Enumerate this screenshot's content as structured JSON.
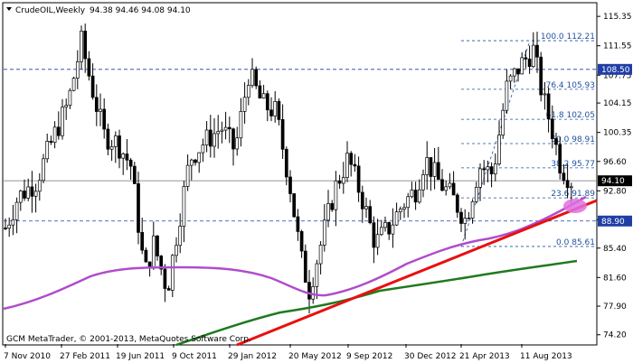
{
  "header": {
    "symbol": "CrudeOIL,Weekly",
    "ohlc": "94.38 94.46 94.08 94.10"
  },
  "footer": {
    "copyright": "GCM MetaTrader, © 2001-2013, MetaQuotes Software Corp."
  },
  "chart_data": {
    "type": "candlestick",
    "ylim": [
      73.0,
      117.0
    ],
    "y_ticks": [
      {
        "value": 115.35,
        "label": "115.35"
      },
      {
        "value": 111.55,
        "label": "111.55"
      },
      {
        "value": 107.75,
        "label": "107.75"
      },
      {
        "value": 104.15,
        "label": "104.15"
      },
      {
        "value": 100.35,
        "label": "100.35"
      },
      {
        "value": 96.6,
        "label": "96.60"
      },
      {
        "value": 92.8,
        "label": "92.80"
      },
      {
        "value": 89.05,
        "label": "89.05"
      },
      {
        "value": 85.4,
        "label": "85.40"
      },
      {
        "value": 81.6,
        "label": "81.60"
      },
      {
        "value": 77.9,
        "label": "77.90"
      },
      {
        "value": 74.2,
        "label": "74.20"
      }
    ],
    "x_labels": [
      "7 Nov 2010",
      "27 Feb 2011",
      "19 Jun 2011",
      "9 Oct 2011",
      "29 Jan 2012",
      "20 May 2012",
      "9 Sep 2012",
      "30 Dec 2012",
      "21 Apr 2013",
      "11 Aug 2013"
    ],
    "price_markers": [
      {
        "value": 108.5,
        "label": "108.50",
        "color": "#1f3fa6"
      },
      {
        "value": 94.1,
        "label": "94.10",
        "color": "#000000"
      },
      {
        "value": 88.9,
        "label": "88.90",
        "color": "#1f3fa6"
      }
    ],
    "fibonacci": [
      {
        "level": "100.0",
        "price": 112.21,
        "label": "100.0 112.21"
      },
      {
        "level": "76.4",
        "price": 105.93,
        "label": "76.4 105.93"
      },
      {
        "level": "61.8",
        "price": 102.05,
        "label": "61.8 102.05"
      },
      {
        "level": "50.0",
        "price": 98.91,
        "label": "50.0 98.91"
      },
      {
        "level": "38.2",
        "price": 95.77,
        "label": "38.2 95.77"
      },
      {
        "level": "23.6",
        "price": 91.89,
        "label": "23.6 91.89"
      },
      {
        "level": "0.0",
        "price": 85.61,
        "label": "0.0 85.61"
      }
    ],
    "series": [
      {
        "role": "moving-average-slow",
        "color": "#b04ccc"
      },
      {
        "role": "moving-average-long",
        "color": "#1f7a1f"
      },
      {
        "role": "trendline",
        "color": "#e81010"
      }
    ],
    "highlight": {
      "color": "#e070e0"
    }
  }
}
